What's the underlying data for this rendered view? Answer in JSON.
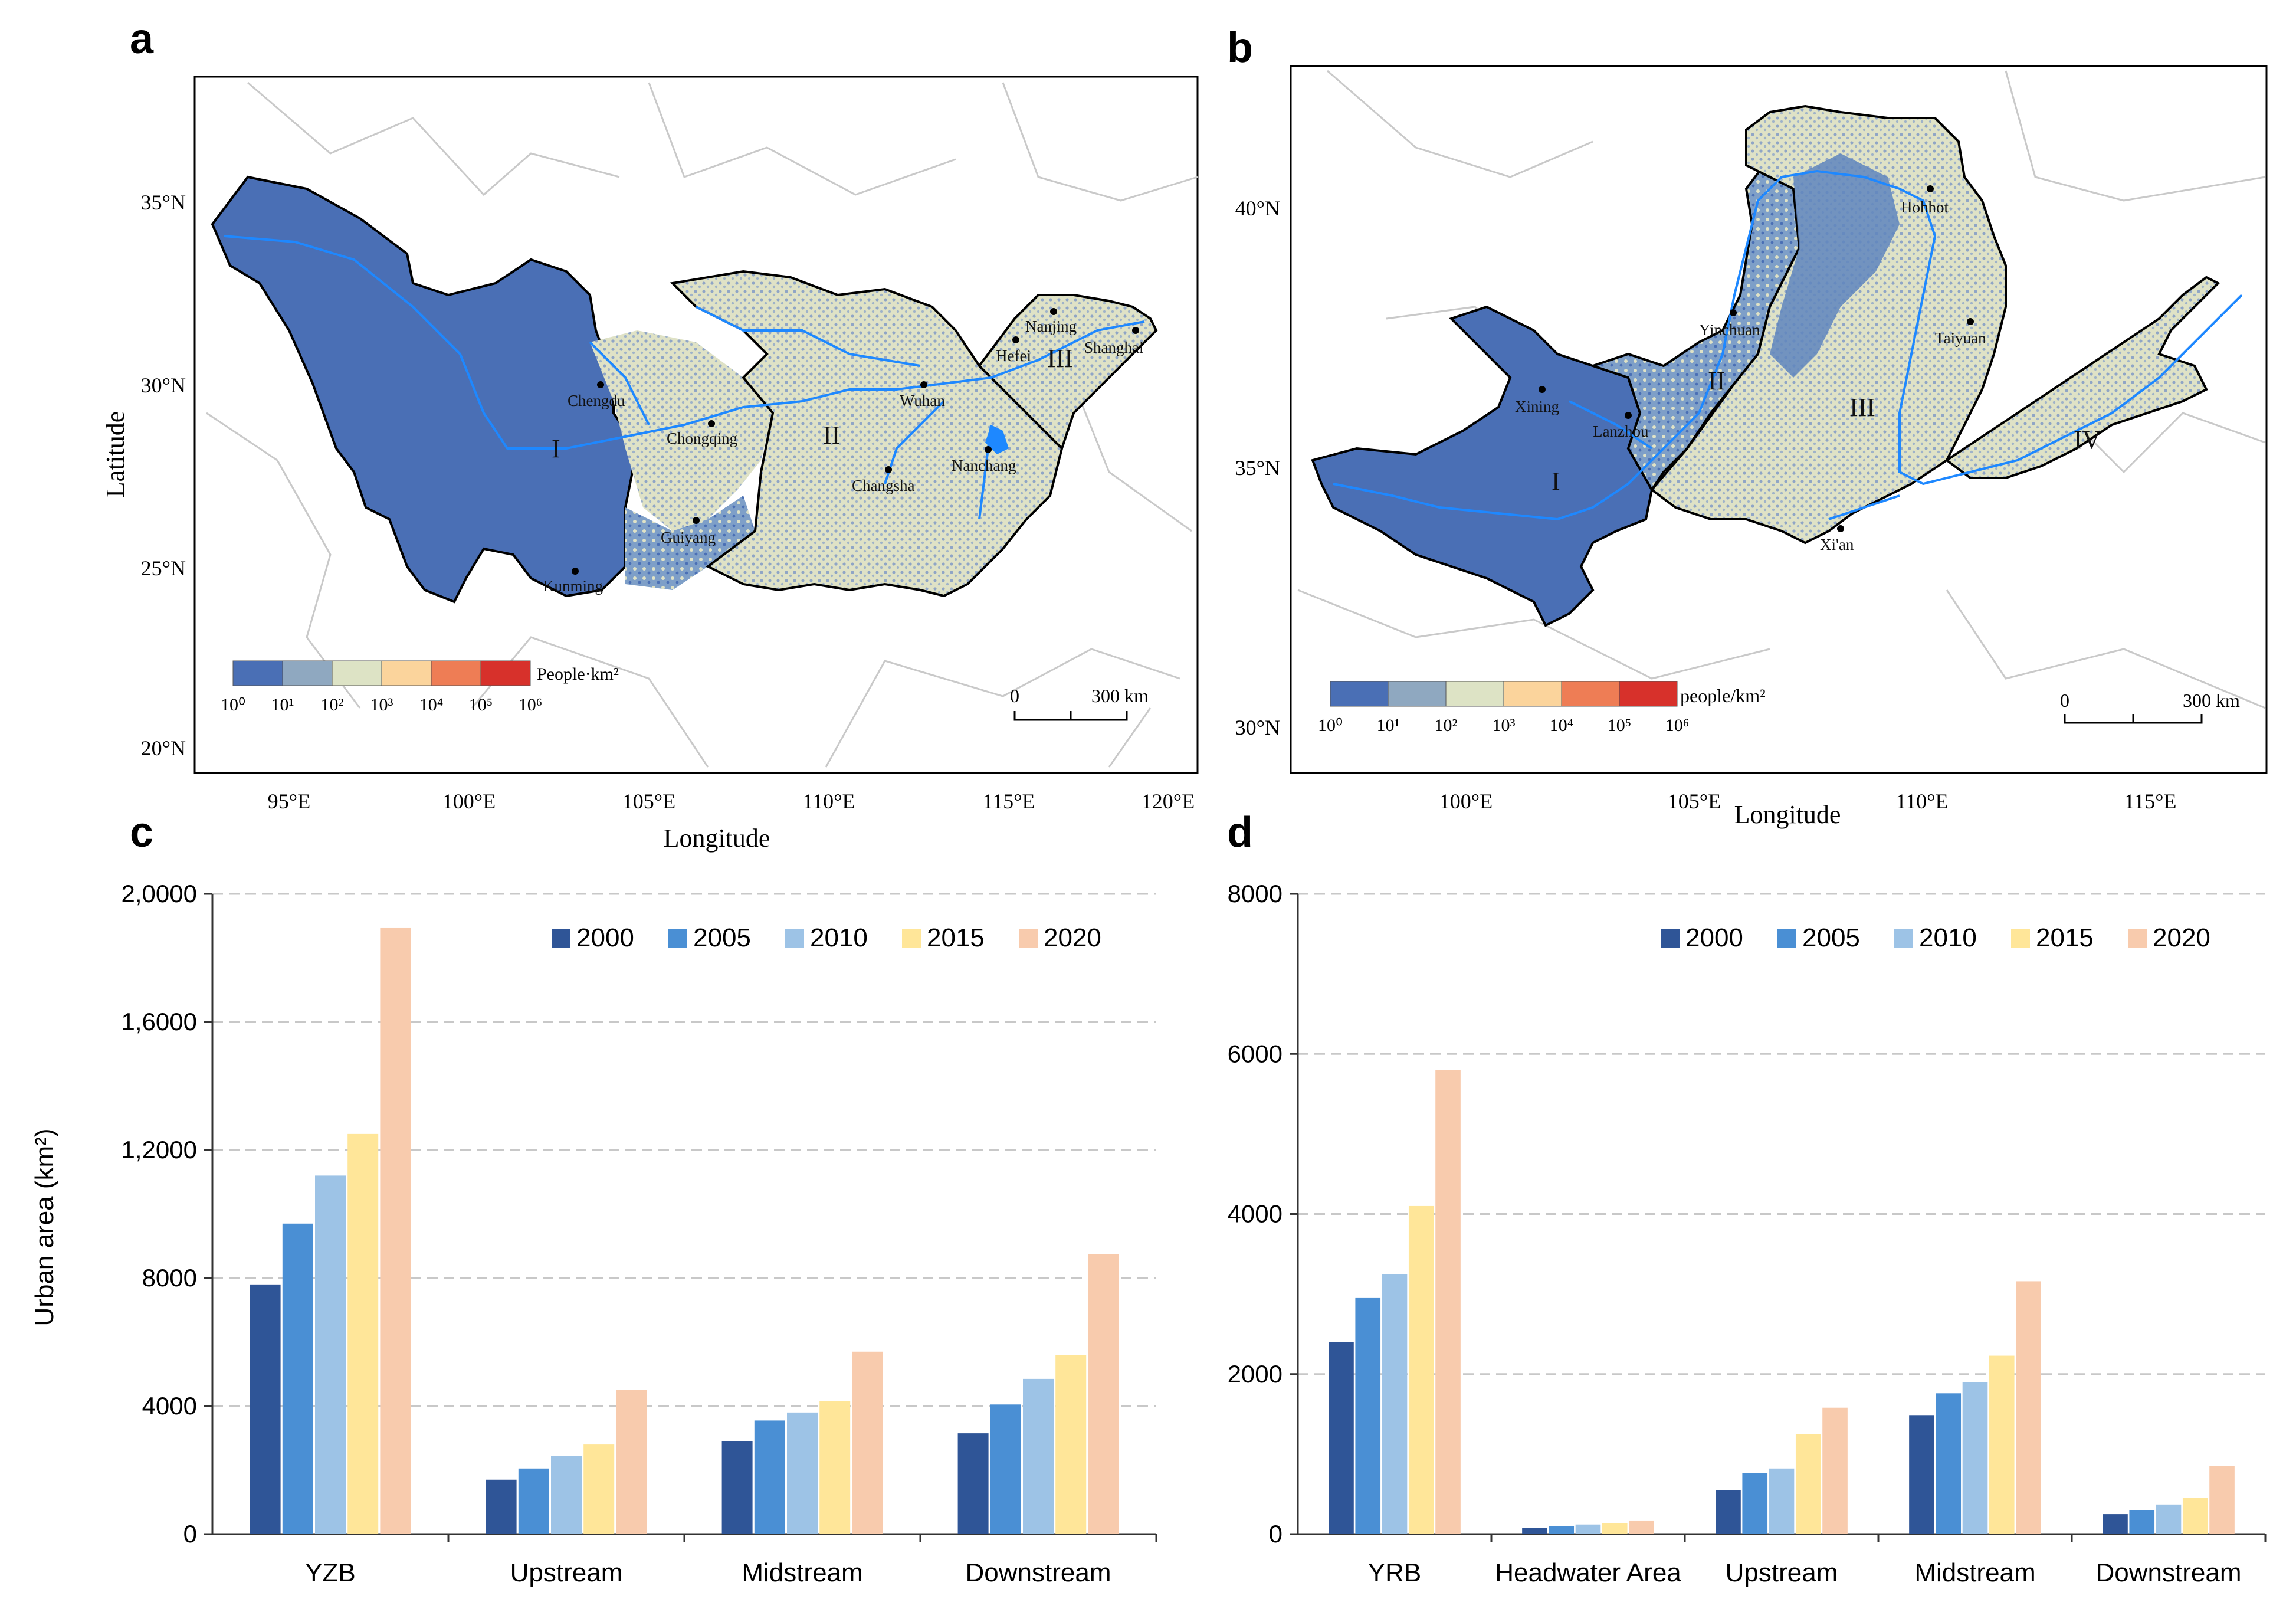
{
  "panels": {
    "a": {
      "letter": "a",
      "xlabel": "Longitude",
      "ylabel": "Latitude",
      "lon_ticks": [
        "95°E",
        "100°E",
        "105°E",
        "110°E",
        "115°E",
        "120°E"
      ],
      "lat_ticks": [
        "35°N",
        "30°N",
        "25°N",
        "20°N"
      ],
      "legend_title": "People·km²",
      "legend_labels": [
        "10⁰",
        "10¹",
        "10²",
        "10³",
        "10⁴",
        "10⁵",
        "10⁶"
      ],
      "scale_zero": "0",
      "scale_label": "300  km",
      "cities": [
        "Chengdu",
        "Chongqing",
        "Guiyang",
        "Kunming",
        "Wuhan",
        "Changsha",
        "Nanchang",
        "Hefei",
        "Nanjing",
        "Shanghai"
      ],
      "regions": [
        "I",
        "II",
        "III"
      ]
    },
    "b": {
      "letter": "b",
      "xlabel": "Longitude",
      "lon_ticks": [
        "100°E",
        "105°E",
        "110°E",
        "115°E"
      ],
      "lat_ticks": [
        "40°N",
        "35°N",
        "30°N"
      ],
      "legend_title": "people/km²",
      "legend_labels": [
        "10⁰",
        "10¹",
        "10²",
        "10³",
        "10⁴",
        "10⁵",
        "10⁶"
      ],
      "scale_zero": "0",
      "scale_label": "300 km",
      "cities": [
        "Hohhot",
        "Yinchuan",
        "Taiyuan",
        "Xining",
        "Lanzhou",
        "Xi'an"
      ],
      "regions": [
        "I",
        "II",
        "III",
        "IV"
      ]
    }
  },
  "colors": {
    "series": [
      "#2f5597",
      "#4a8fd4",
      "#9dc3e6",
      "#ffe699",
      "#f8cbad"
    ],
    "legend_ramp": [
      "#4a6fb5",
      "#8fa8c0",
      "#dde3c5",
      "#fbd49c",
      "#ee7d55",
      "#d7312b"
    ]
  },
  "chart_data": [
    {
      "panel": "c",
      "letter": "c",
      "type": "bar",
      "ylabel": "Urban area (km²)",
      "categories": [
        "YZB",
        "Upstream",
        "Midstream",
        "Downstream"
      ],
      "ylim": [
        0,
        20000
      ],
      "yticks": [
        0,
        4000,
        8000,
        12000,
        16000,
        20000
      ],
      "ytick_labels": [
        "0",
        "4000",
        "8000",
        "1,2000",
        "1,6000",
        "2,0000"
      ],
      "grid": true,
      "legend_position": "top-right",
      "series": [
        {
          "name": "2000",
          "values": [
            7800,
            1700,
            2900,
            3150
          ]
        },
        {
          "name": "2005",
          "values": [
            9700,
            2050,
            3550,
            4050
          ]
        },
        {
          "name": "2010",
          "values": [
            11200,
            2450,
            3800,
            4850
          ]
        },
        {
          "name": "2015",
          "values": [
            12500,
            2800,
            4150,
            5600
          ]
        },
        {
          "name": "2020",
          "values": [
            18950,
            4500,
            5700,
            8750
          ]
        }
      ]
    },
    {
      "panel": "d",
      "letter": "d",
      "type": "bar",
      "ylabel": "",
      "categories": [
        "YRB",
        "Headwater Area",
        "Upstream",
        "Midstream",
        "Downstream"
      ],
      "ylim": [
        0,
        8000
      ],
      "yticks": [
        0,
        2000,
        4000,
        6000,
        8000
      ],
      "ytick_labels": [
        "0",
        "2000",
        "4000",
        "6000",
        "8000"
      ],
      "grid": true,
      "legend_position": "top-right",
      "series": [
        {
          "name": "2000",
          "values": [
            2400,
            80,
            550,
            1480,
            250
          ]
        },
        {
          "name": "2005",
          "values": [
            2950,
            100,
            760,
            1760,
            300
          ]
        },
        {
          "name": "2010",
          "values": [
            3250,
            120,
            820,
            1900,
            370
          ]
        },
        {
          "name": "2015",
          "values": [
            4100,
            140,
            1250,
            2230,
            450
          ]
        },
        {
          "name": "2020",
          "values": [
            5800,
            170,
            1580,
            3160,
            850
          ]
        }
      ]
    }
  ]
}
